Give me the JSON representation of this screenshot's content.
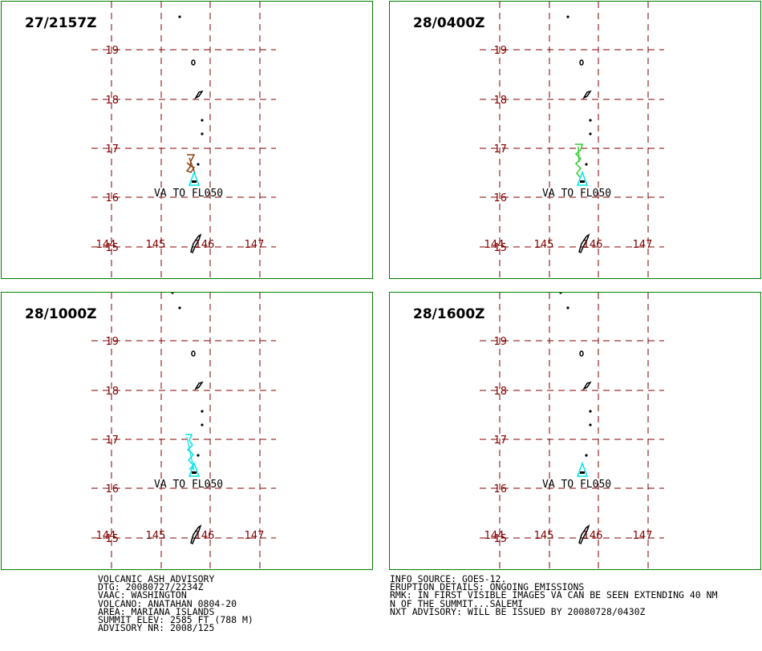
{
  "panels": [
    {
      "time": "27/2157Z",
      "ash_label": "VA TO FL050",
      "ash_type": "brown"
    },
    {
      "time": "28/0400Z",
      "ash_label": "VA TO FL050",
      "ash_type": "green"
    },
    {
      "time": "28/1000Z",
      "ash_label": "VA TO FL050",
      "ash_type": "cyan"
    },
    {
      "time": "28/1600Z",
      "ash_label": "VA TO FL050",
      "ash_type": "none"
    }
  ],
  "map": {
    "lat_labels": [
      "19",
      "18",
      "17",
      "16",
      "15"
    ],
    "lon_labels": [
      "144",
      "145",
      "146",
      "147"
    ]
  },
  "colors": {
    "panel_border": "#008000",
    "grid": "#800000",
    "brown_ash": "#8b4513",
    "green_ash": "#33cc33",
    "cyan_ash": "#00e5e5",
    "island": "#000000"
  },
  "advisory_left": [
    "VOLCANIC ASH ADVISORY",
    "DTG: 20080727/2234Z",
    "VAAC: WASHINGTON",
    "VOLCANO: ANATAHAN 0804-20",
    "AREA: MARIANA ISLANDS",
    "SUMMIT ELEV: 2585 FT (788 M)",
    "ADVISORY NR: 2008/125"
  ],
  "advisory_right": [
    "INFO SOURCE: GOES-12.",
    "ERUPTION DETAILS: ONGOING EMISSIONS",
    "RMK: IN FIRST VISIBLE IMAGES VA CAN BE SEEN EXTENDING 40 NM",
    "N OF THE SUMMIT...SALEMI",
    "NXT ADVISORY: WILL BE ISSUED BY 20080728/0430Z"
  ]
}
